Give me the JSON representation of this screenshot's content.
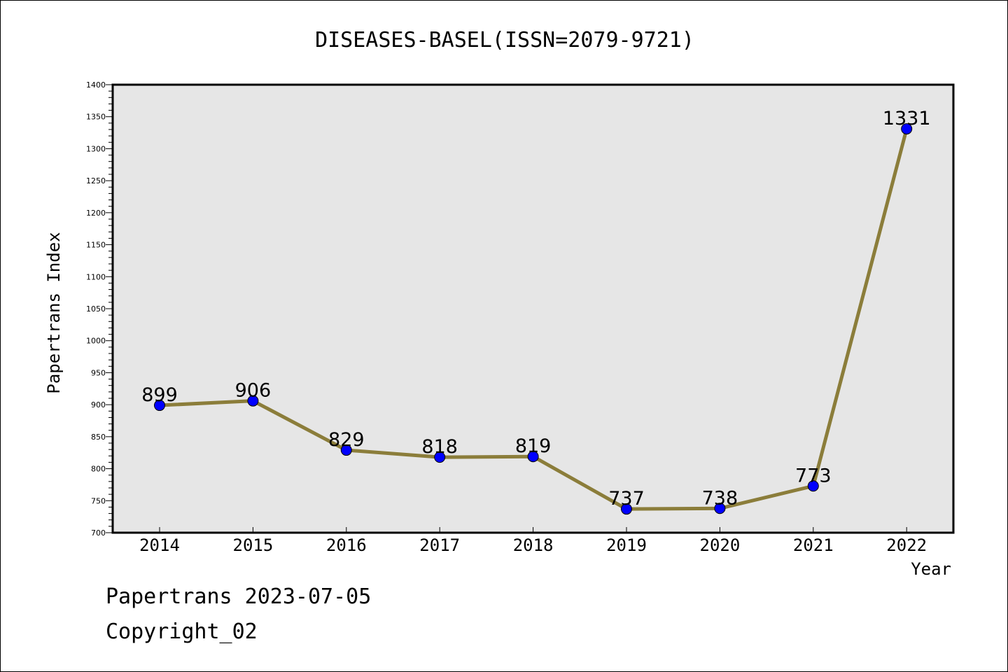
{
  "chart_data": {
    "type": "line",
    "title": "DISEASES-BASEL(ISSN=2079-9721)",
    "xlabel": "Year",
    "ylabel": "Papertrans Index",
    "categories": [
      "2014",
      "2015",
      "2016",
      "2017",
      "2018",
      "2019",
      "2020",
      "2021",
      "2022"
    ],
    "series": [
      {
        "name": "Papertrans Index",
        "values": [
          899,
          906,
          829,
          818,
          819,
          737,
          738,
          773,
          1331
        ]
      }
    ],
    "data_labels": [
      "899",
      "906",
      "829",
      "818",
      "819",
      "737",
      "738",
      "773",
      "1331"
    ],
    "ylim": [
      700,
      1400
    ],
    "y_ticks": [
      "700",
      "750",
      "800",
      "850",
      "900",
      "950",
      "1000",
      "1050",
      "1100",
      "1150",
      "1200",
      "1250",
      "1300",
      "1350",
      "1400"
    ],
    "grid": false,
    "colors": {
      "line": "#8b7d3a",
      "marker": "#0000ff",
      "plot_background": "#e6e6e6"
    }
  },
  "footer": {
    "line1": "Papertrans 2023-07-05",
    "line2": "Copyright_02"
  }
}
